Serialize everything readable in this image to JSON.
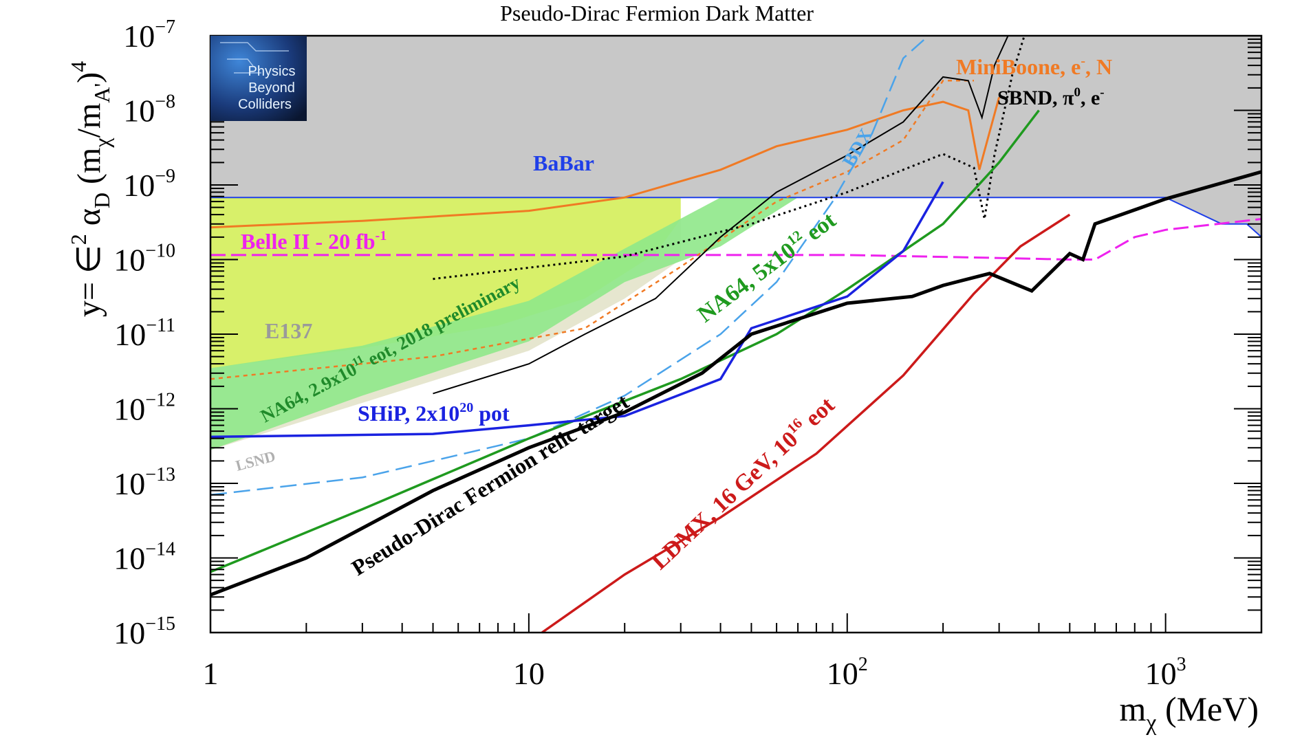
{
  "chart_data": {
    "type": "line",
    "title": "Pseudo-Dirac Fermion Dark Matter",
    "xlabel": "m",
    "xlabel_sub": "χ",
    "xlabel_unit": " (MeV)",
    "ylabel": "y= ∈",
    "xscale": "log",
    "yscale": "log",
    "xlim": [
      1,
      2000
    ],
    "ylim": [
      1e-15,
      1e-07
    ],
    "x_tick_labels": [
      {
        "v": 1,
        "base": "1",
        "exp": ""
      },
      {
        "v": 10,
        "base": "10",
        "exp": ""
      },
      {
        "v": 100,
        "base": "10",
        "exp": "2"
      },
      {
        "v": 1000,
        "base": "10",
        "exp": "3"
      }
    ],
    "y_tick_labels": [
      {
        "v": -7,
        "base": "10",
        "exp": "−7"
      },
      {
        "v": -8,
        "base": "10",
        "exp": "−8"
      },
      {
        "v": -9,
        "base": "10",
        "exp": "−9"
      },
      {
        "v": -10,
        "base": "10",
        "exp": "−10"
      },
      {
        "v": -11,
        "base": "10",
        "exp": "−11"
      },
      {
        "v": -12,
        "base": "10",
        "exp": "−12"
      },
      {
        "v": -13,
        "base": "10",
        "exp": "−13"
      },
      {
        "v": -14,
        "base": "10",
        "exp": "−14"
      },
      {
        "v": -15,
        "base": "10",
        "exp": "−15"
      }
    ],
    "logo": {
      "lines": [
        "Physics",
        "Beyond",
        "Colliders"
      ]
    },
    "colors": {
      "excluded": "#c8c8c8",
      "babar": "#1f3fe8",
      "e137": "#d8f06a",
      "na64_prelim": "#8fe88a",
      "lsnd": "#e6e6cf",
      "miniboone": "#f07a24",
      "belle": "#ee22ee",
      "bdx": "#4aa3ea",
      "na64": "#1f9a1f",
      "ship": "#1a22e0",
      "ldmx": "#cc1a1a",
      "relic": "#000000"
    },
    "series": [
      {
        "name": "BaBar",
        "style": "region",
        "points": [
          [
            1,
            6.8e-10
          ],
          [
            1000,
            6.8e-10
          ],
          [
            1500,
            3e-10
          ],
          [
            1800,
            3e-10
          ],
          [
            2000,
            2e-10
          ]
        ]
      },
      {
        "name": "MiniBoone, e-, N",
        "style": "solid",
        "points": [
          [
            1,
            2.7e-10
          ],
          [
            3,
            3.3e-10
          ],
          [
            10,
            4.5e-10
          ],
          [
            20,
            6.8e-10
          ],
          [
            40,
            1.6e-09
          ],
          [
            60,
            3.3e-09
          ],
          [
            100,
            5.5e-09
          ],
          [
            150,
            1e-08
          ],
          [
            200,
            1.3e-08
          ],
          [
            240,
            1e-08
          ],
          [
            260,
            1.6e-09
          ],
          [
            300,
            1.5e-08
          ]
        ]
      },
      {
        "name": "Belle II - 20 fb-1",
        "style": "dashed",
        "points": [
          [
            1,
            1.15e-10
          ],
          [
            100,
            1.15e-10
          ],
          [
            300,
            1.05e-10
          ],
          [
            500,
            1e-10
          ],
          [
            600,
            1e-10
          ],
          [
            800,
            2e-10
          ],
          [
            1000,
            2.5e-10
          ],
          [
            2000,
            3.5e-10
          ]
        ]
      },
      {
        "name": "E137",
        "style": "region",
        "points": [
          [
            1,
            6.8e-10
          ],
          [
            1,
            3.5e-12
          ],
          [
            3,
            6.5e-12
          ],
          [
            8,
            1.3e-11
          ],
          [
            15,
            3e-11
          ],
          [
            25,
            1.2e-10
          ],
          [
            30,
            3.5e-10
          ],
          [
            30,
            6.8e-10
          ]
        ]
      },
      {
        "name": "NA64, 2.9x10^11 eot, 2018 preliminary",
        "style": "region",
        "points": [
          [
            1,
            2.8e-13
          ],
          [
            3,
            1.5e-12
          ],
          [
            10,
            8e-12
          ],
          [
            20,
            5e-11
          ],
          [
            40,
            1.5e-10
          ],
          [
            70,
            6.8e-10
          ],
          [
            40,
            6.8e-10
          ],
          [
            20,
            1.4e-10
          ],
          [
            10,
            2.8e-11
          ],
          [
            3,
            7e-12
          ],
          [
            1,
            3.5e-12
          ]
        ]
      },
      {
        "name": "NA64, 5x10^12 eot",
        "style": "solid",
        "points": [
          [
            1,
            6.5e-15
          ],
          [
            3,
            4.5e-14
          ],
          [
            10,
            4e-13
          ],
          [
            30,
            2.5e-12
          ],
          [
            60,
            1e-11
          ],
          [
            100,
            4e-11
          ],
          [
            200,
            3e-10
          ],
          [
            300,
            2e-09
          ],
          [
            400,
            1e-08
          ]
        ]
      },
      {
        "name": "SHiP, 2x10^20 pot",
        "style": "solid",
        "points": [
          [
            1,
            4.2e-13
          ],
          [
            5,
            4.6e-13
          ],
          [
            10,
            6e-13
          ],
          [
            20,
            8e-13
          ],
          [
            40,
            2.5e-12
          ],
          [
            50,
            1.2e-11
          ],
          [
            100,
            3.2e-11
          ],
          [
            150,
            1.3e-10
          ],
          [
            200,
            1.1e-09
          ]
        ]
      },
      {
        "name": "BDX",
        "style": "dashed",
        "points": [
          [
            1,
            7e-14
          ],
          [
            3,
            1.2e-13
          ],
          [
            10,
            4e-13
          ],
          [
            20,
            1.5e-12
          ],
          [
            40,
            1e-11
          ],
          [
            60,
            5e-11
          ],
          [
            90,
            6e-10
          ],
          [
            120,
            5e-09
          ],
          [
            150,
            5e-08
          ],
          [
            180,
            1e-07
          ]
        ]
      },
      {
        "name": "LDMX, 16 GeV, 10^16 eot",
        "style": "solid",
        "points": [
          [
            11,
            1e-15
          ],
          [
            20,
            6e-15
          ],
          [
            40,
            3.5e-14
          ],
          [
            80,
            2.5e-13
          ],
          [
            150,
            2.8e-12
          ],
          [
            250,
            3.5e-11
          ],
          [
            350,
            1.5e-10
          ],
          [
            500,
            4e-10
          ]
        ]
      },
      {
        "name": "Pseudo-Dirac Fermion relic target",
        "style": "solid",
        "points": [
          [
            1,
            3.2e-15
          ],
          [
            2,
            1e-14
          ],
          [
            5,
            8e-14
          ],
          [
            10,
            3e-13
          ],
          [
            20,
            9e-13
          ],
          [
            35,
            3e-12
          ],
          [
            50,
            1e-11
          ],
          [
            100,
            2.6e-11
          ],
          [
            160,
            3.2e-11
          ],
          [
            200,
            4.5e-11
          ],
          [
            280,
            6.5e-11
          ],
          [
            380,
            3.8e-11
          ],
          [
            500,
            1.2e-10
          ],
          [
            550,
            1e-10
          ],
          [
            600,
            3e-10
          ],
          [
            1000,
            6.5e-10
          ],
          [
            2000,
            1.5e-09
          ]
        ]
      },
      {
        "name": "SBND, π0, e-",
        "style": "dotted",
        "points": [
          [
            5,
            5.5e-11
          ],
          [
            20,
            1.1e-10
          ],
          [
            50,
            3e-10
          ],
          [
            100,
            8e-10
          ],
          [
            150,
            1.6e-09
          ],
          [
            200,
            2.6e-09
          ],
          [
            250,
            1.7e-09
          ],
          [
            270,
            3.5e-10
          ],
          [
            290,
            2.5e-09
          ],
          [
            330,
            3e-08
          ],
          [
            360,
            1e-07
          ]
        ]
      }
    ],
    "annotations": [
      {
        "text": "BaBar",
        "color": "#1f3fe8",
        "size": 32
      },
      {
        "text": "Belle II - 20 fb",
        "sup": "-1",
        "color": "#ee22ee",
        "size": 32
      },
      {
        "text": "E137",
        "color": "#9a9a9a",
        "size": 32
      },
      {
        "text": "LSND",
        "color": "#b0b0b0",
        "size": 22
      },
      {
        "text": "MiniBoone, e",
        "sup": "-",
        "after": ", N",
        "color": "#f07a24",
        "size": 32
      },
      {
        "text": "SBND, π",
        "sup": "0",
        "after": ", e",
        "sup2": "-",
        "color": "#000000",
        "size": 30
      },
      {
        "text": "BDX",
        "color": "#4aa3ea",
        "size": 28
      },
      {
        "text": "NA64, 5x10",
        "sup": "12",
        "after": " eot",
        "color": "#1f9a1f",
        "size": 34
      },
      {
        "text": "NA64, 2.9x10",
        "sup": "11",
        "after": " eot, 2018 preliminary",
        "color": "#1f8a2a",
        "size": 27
      },
      {
        "text": "SHiP, 2x10",
        "sup": "20",
        "after": " pot",
        "color": "#1a22e0",
        "size": 32
      },
      {
        "text": "Pseudo-Dirac Fermion relic target",
        "color": "#000000",
        "size": 32
      },
      {
        "text": "LDMX, 16 GeV, 10",
        "sup": "16",
        "after": "  eot",
        "color": "#cc1a1a",
        "size": 34
      }
    ]
  }
}
